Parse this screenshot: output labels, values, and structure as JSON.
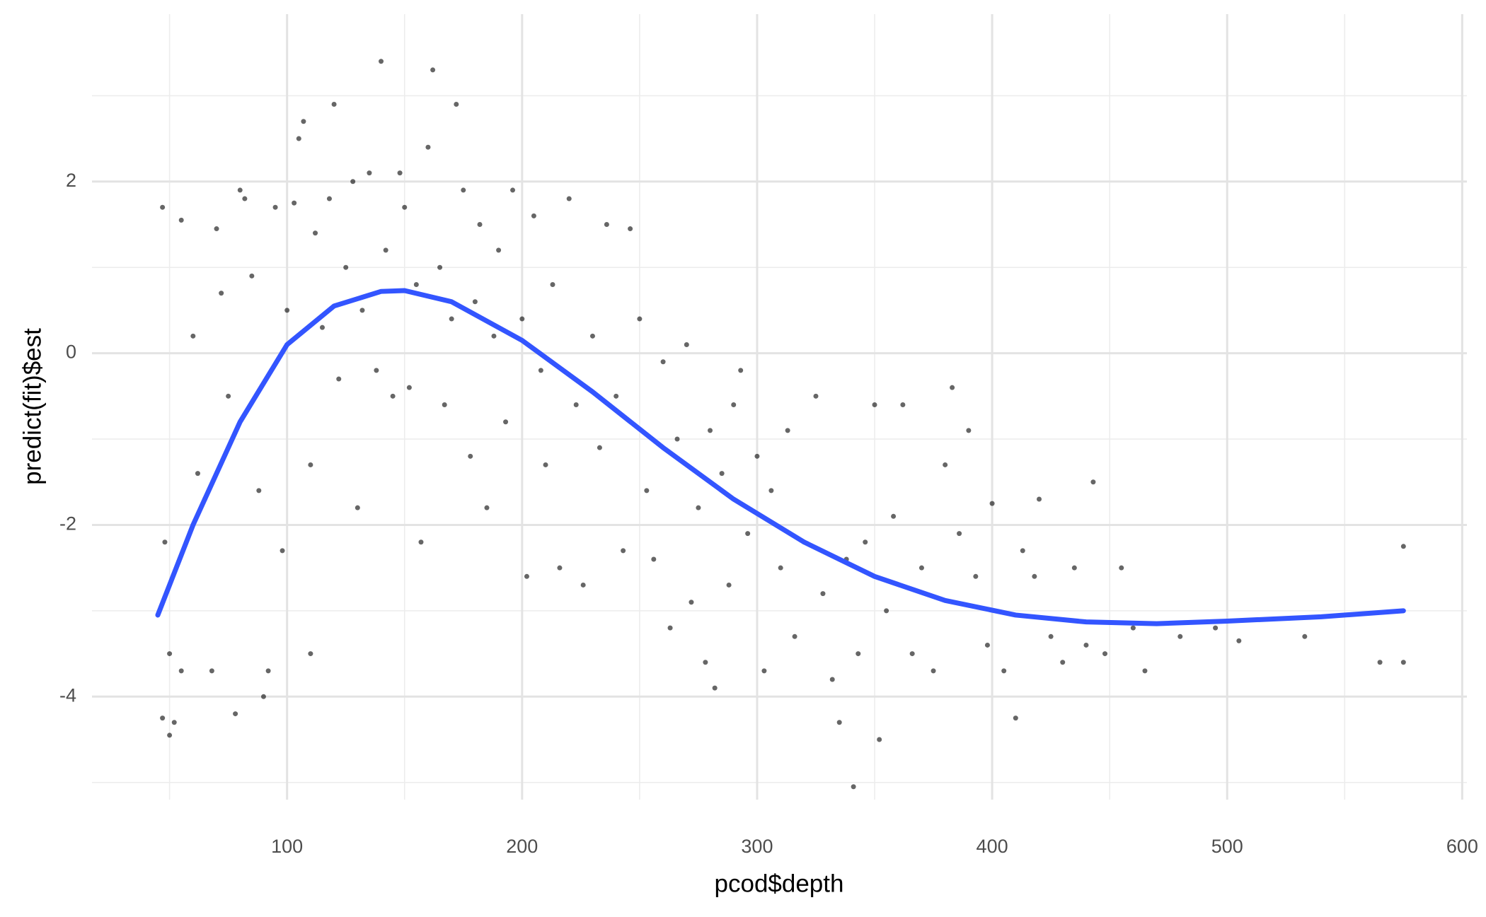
{
  "chart_data": {
    "type": "scatter",
    "x_label": "pcod$depth",
    "y_label": "predict(fit)$est",
    "xlim": [
      17,
      602
    ],
    "ylim": [
      -5.2,
      3.95
    ],
    "xticks": [
      100,
      200,
      300,
      400,
      500,
      600
    ],
    "yticks": [
      -4,
      -2,
      0,
      2
    ],
    "x_minor_ticks": [
      50,
      150,
      250,
      350,
      450,
      550
    ],
    "y_minor_ticks": [
      -5,
      -3,
      -1,
      1,
      3
    ],
    "grid": true,
    "points": {
      "color": "#000000",
      "x": [
        47,
        50,
        52,
        48,
        50,
        55,
        47,
        55,
        60,
        62,
        65,
        68,
        70,
        72,
        75,
        78,
        80,
        82,
        85,
        88,
        90,
        92,
        95,
        98,
        100,
        103,
        105,
        107,
        110,
        110,
        112,
        115,
        118,
        120,
        122,
        125,
        128,
        130,
        132,
        135,
        138,
        140,
        142,
        145,
        148,
        150,
        152,
        155,
        157,
        160,
        162,
        165,
        167,
        170,
        172,
        175,
        178,
        180,
        182,
        185,
        188,
        190,
        193,
        196,
        200,
        202,
        205,
        208,
        210,
        213,
        216,
        220,
        223,
        226,
        230,
        233,
        236,
        240,
        243,
        246,
        250,
        253,
        256,
        260,
        263,
        266,
        270,
        272,
        275,
        278,
        280,
        282,
        285,
        288,
        290,
        293,
        296,
        300,
        303,
        306,
        310,
        313,
        316,
        320,
        325,
        328,
        332,
        335,
        338,
        341,
        343,
        346,
        350,
        352,
        355,
        358,
        362,
        366,
        370,
        375,
        380,
        383,
        386,
        390,
        393,
        398,
        400,
        405,
        410,
        413,
        418,
        420,
        425,
        430,
        435,
        440,
        443,
        448,
        455,
        460,
        465,
        480,
        495,
        505,
        533,
        565,
        575,
        575
      ],
      "y": [
        -4.25,
        -4.45,
        -4.3,
        -2.2,
        -3.5,
        -3.7,
        1.7,
        1.55,
        0.2,
        -1.4,
        -1.7,
        -3.7,
        1.45,
        0.7,
        -0.5,
        -4.2,
        1.9,
        1.8,
        0.9,
        -1.6,
        -4.0,
        -3.7,
        1.7,
        -2.3,
        0.5,
        1.75,
        2.5,
        2.7,
        -1.3,
        -3.5,
        1.4,
        0.3,
        1.8,
        2.9,
        -0.3,
        1.0,
        2.0,
        -1.8,
        0.5,
        2.1,
        -0.2,
        3.4,
        1.2,
        -0.5,
        2.1,
        1.7,
        -0.4,
        0.8,
        -2.2,
        2.4,
        3.3,
        1.0,
        -0.6,
        0.4,
        2.9,
        1.9,
        -1.2,
        0.6,
        1.5,
        -1.8,
        0.2,
        1.2,
        -0.8,
        1.9,
        0.4,
        -2.6,
        1.6,
        -0.2,
        -1.3,
        0.8,
        -2.5,
        1.8,
        -0.6,
        -2.7,
        0.2,
        -1.1,
        1.5,
        -0.5,
        -2.3,
        1.45,
        0.4,
        -1.6,
        -2.4,
        -0.1,
        -3.2,
        -1.0,
        0.1,
        -2.9,
        -1.8,
        -3.6,
        -0.9,
        -3.9,
        -1.4,
        -2.7,
        -0.6,
        -0.2,
        -2.1,
        -1.2,
        -3.7,
        -1.6,
        -2.5,
        -0.9,
        -3.3,
        -2.2,
        -0.5,
        -2.8,
        -3.8,
        -4.3,
        -2.4,
        -5.05,
        -3.5,
        -2.2,
        -0.6,
        -4.5,
        -3.0,
        -1.9,
        -0.6,
        -3.5,
        -2.5,
        -3.7,
        -1.3,
        -0.4,
        -2.1,
        -0.9,
        -2.6,
        -3.4,
        -1.75,
        -3.7,
        -4.25,
        -2.3,
        -2.6,
        -1.7,
        -3.3,
        -3.6,
        -2.5,
        -3.4,
        -1.5,
        -3.5,
        -2.5,
        -3.2,
        -3.7,
        -3.3,
        -3.2,
        -3.35,
        -3.3,
        -3.6,
        -2.25,
        -3.6
      ]
    },
    "line": {
      "color": "#3355ff",
      "x": [
        45,
        60,
        80,
        100,
        120,
        140,
        150,
        170,
        200,
        230,
        260,
        290,
        320,
        350,
        380,
        410,
        440,
        470,
        500,
        540,
        575
      ],
      "y": [
        -3.05,
        -2.0,
        -0.8,
        0.1,
        0.55,
        0.72,
        0.73,
        0.6,
        0.15,
        -0.45,
        -1.1,
        -1.7,
        -2.2,
        -2.6,
        -2.88,
        -3.05,
        -3.13,
        -3.15,
        -3.12,
        -3.07,
        -3.0
      ]
    }
  }
}
